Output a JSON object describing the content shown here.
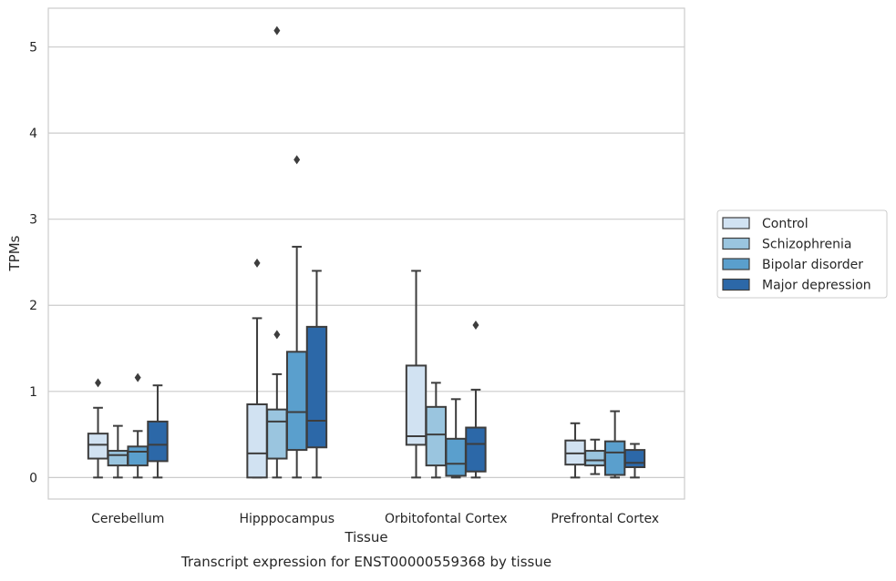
{
  "figure": {
    "caption": "Transcript expression for ENST00000559368 by tissue"
  },
  "chart_data": {
    "type": "box",
    "title": "",
    "xlabel": "Tissue",
    "ylabel": "TPMs",
    "ylim": [
      -0.25,
      5.45
    ],
    "yticks": [
      0,
      1,
      2,
      3,
      4,
      5
    ],
    "grid": "horizontal",
    "legend_position": "right, outside plot",
    "categories": [
      "Cerebellum",
      "Hipppocampus",
      "Orbitofontal Cortex",
      "Prefrontal Cortex"
    ],
    "series": [
      {
        "name": "Control",
        "color": "#d1e2f2",
        "boxes": [
          {
            "whisker_low": 0.0,
            "q1": 0.22,
            "median": 0.38,
            "q3": 0.51,
            "whisker_high": 0.81,
            "outliers": [
              1.1
            ]
          },
          {
            "whisker_low": 0.0,
            "q1": 0.0,
            "median": 0.28,
            "q3": 0.85,
            "whisker_high": 1.85,
            "outliers": [
              2.49
            ]
          },
          {
            "whisker_low": 0.0,
            "q1": 0.38,
            "median": 0.48,
            "q3": 1.3,
            "whisker_high": 2.4,
            "outliers": []
          },
          {
            "whisker_low": 0.0,
            "q1": 0.15,
            "median": 0.28,
            "q3": 0.43,
            "whisker_high": 0.63,
            "outliers": []
          }
        ]
      },
      {
        "name": "Schizophrenia",
        "color": "#9ac5df",
        "boxes": [
          {
            "whisker_low": 0.0,
            "q1": 0.14,
            "median": 0.26,
            "q3": 0.31,
            "whisker_high": 0.6,
            "outliers": []
          },
          {
            "whisker_low": 0.0,
            "q1": 0.22,
            "median": 0.65,
            "q3": 0.79,
            "whisker_high": 1.2,
            "outliers": [
              1.66,
              5.19
            ]
          },
          {
            "whisker_low": 0.0,
            "q1": 0.14,
            "median": 0.5,
            "q3": 0.82,
            "whisker_high": 1.1,
            "outliers": []
          },
          {
            "whisker_low": 0.04,
            "q1": 0.14,
            "median": 0.2,
            "q3": 0.31,
            "whisker_high": 0.44,
            "outliers": []
          }
        ]
      },
      {
        "name": "Bipolar disorder",
        "color": "#5a9fcd",
        "boxes": [
          {
            "whisker_low": 0.0,
            "q1": 0.14,
            "median": 0.3,
            "q3": 0.36,
            "whisker_high": 0.54,
            "outliers": [
              1.16
            ]
          },
          {
            "whisker_low": 0.0,
            "q1": 0.32,
            "median": 0.76,
            "q3": 1.46,
            "whisker_high": 2.68,
            "outliers": [
              3.69
            ]
          },
          {
            "whisker_low": 0.0,
            "q1": 0.02,
            "median": 0.16,
            "q3": 0.45,
            "whisker_high": 0.91,
            "outliers": []
          },
          {
            "whisker_low": 0.0,
            "q1": 0.03,
            "median": 0.29,
            "q3": 0.42,
            "whisker_high": 0.77,
            "outliers": []
          }
        ]
      },
      {
        "name": "Major depression",
        "color": "#2c68a8",
        "boxes": [
          {
            "whisker_low": 0.0,
            "q1": 0.19,
            "median": 0.38,
            "q3": 0.65,
            "whisker_high": 1.07,
            "outliers": []
          },
          {
            "whisker_low": 0.0,
            "q1": 0.35,
            "median": 0.66,
            "q3": 1.75,
            "whisker_high": 2.4,
            "outliers": []
          },
          {
            "whisker_low": 0.0,
            "q1": 0.07,
            "median": 0.39,
            "q3": 0.58,
            "whisker_high": 1.02,
            "outliers": [
              1.77
            ]
          },
          {
            "whisker_low": 0.0,
            "q1": 0.12,
            "median": 0.17,
            "q3": 0.32,
            "whisker_high": 0.39,
            "outliers": []
          }
        ]
      }
    ]
  }
}
